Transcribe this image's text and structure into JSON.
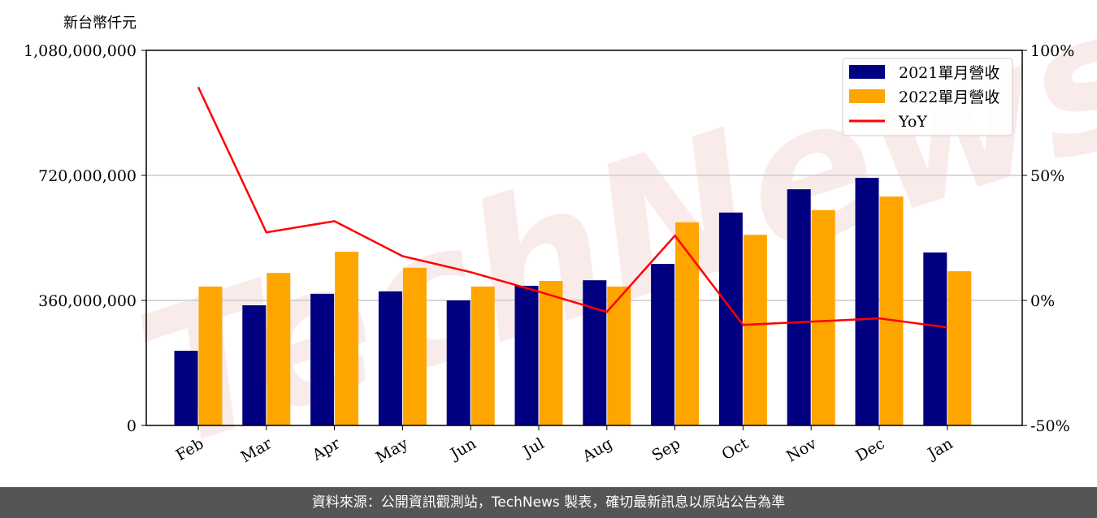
{
  "chart_data": {
    "type": "bar",
    "ylabel": "新台幣仟元",
    "categories": [
      "Feb",
      "Mar",
      "Apr",
      "May",
      "Jun",
      "Jul",
      "Aug",
      "Sep",
      "Oct",
      "Nov",
      "Dec",
      "Jan"
    ],
    "series": [
      {
        "name": "2021單月營收",
        "type": "bar",
        "color": "#000080",
        "values": [
          215000000,
          346000000,
          379000000,
          386000000,
          360000000,
          402000000,
          418000000,
          465000000,
          613000000,
          680000000,
          713000000,
          498000000
        ]
      },
      {
        "name": "2022單月營收",
        "type": "bar",
        "color": "#FFA500",
        "values": [
          400000000,
          439000000,
          500000000,
          454000000,
          400000000,
          416000000,
          400000000,
          585000000,
          549000000,
          620000000,
          659000000,
          444000000
        ]
      },
      {
        "name": "YoY",
        "type": "line",
        "axis": "right",
        "color": "#FF0000",
        "values": [
          85.3,
          27.2,
          31.7,
          17.7,
          11.3,
          3.5,
          -4.6,
          25.9,
          -9.8,
          -8.5,
          -7.2,
          -10.8
        ]
      }
    ],
    "ylim": [
      0,
      1080000000
    ],
    "yticks": [
      "0",
      "360,000,000",
      "720,000,000",
      "1,080,000,000"
    ],
    "y2lim": [
      -50,
      100
    ],
    "y2ticks": [
      "-50%",
      "0%",
      "50%",
      "100%"
    ],
    "grid": "horizontal",
    "legend": "top-right"
  },
  "watermark": "TechNews",
  "footer": {
    "text": "資料來源：公開資訊觀測站，TechNews 製表，確切最新訊息以原站公告為準"
  }
}
